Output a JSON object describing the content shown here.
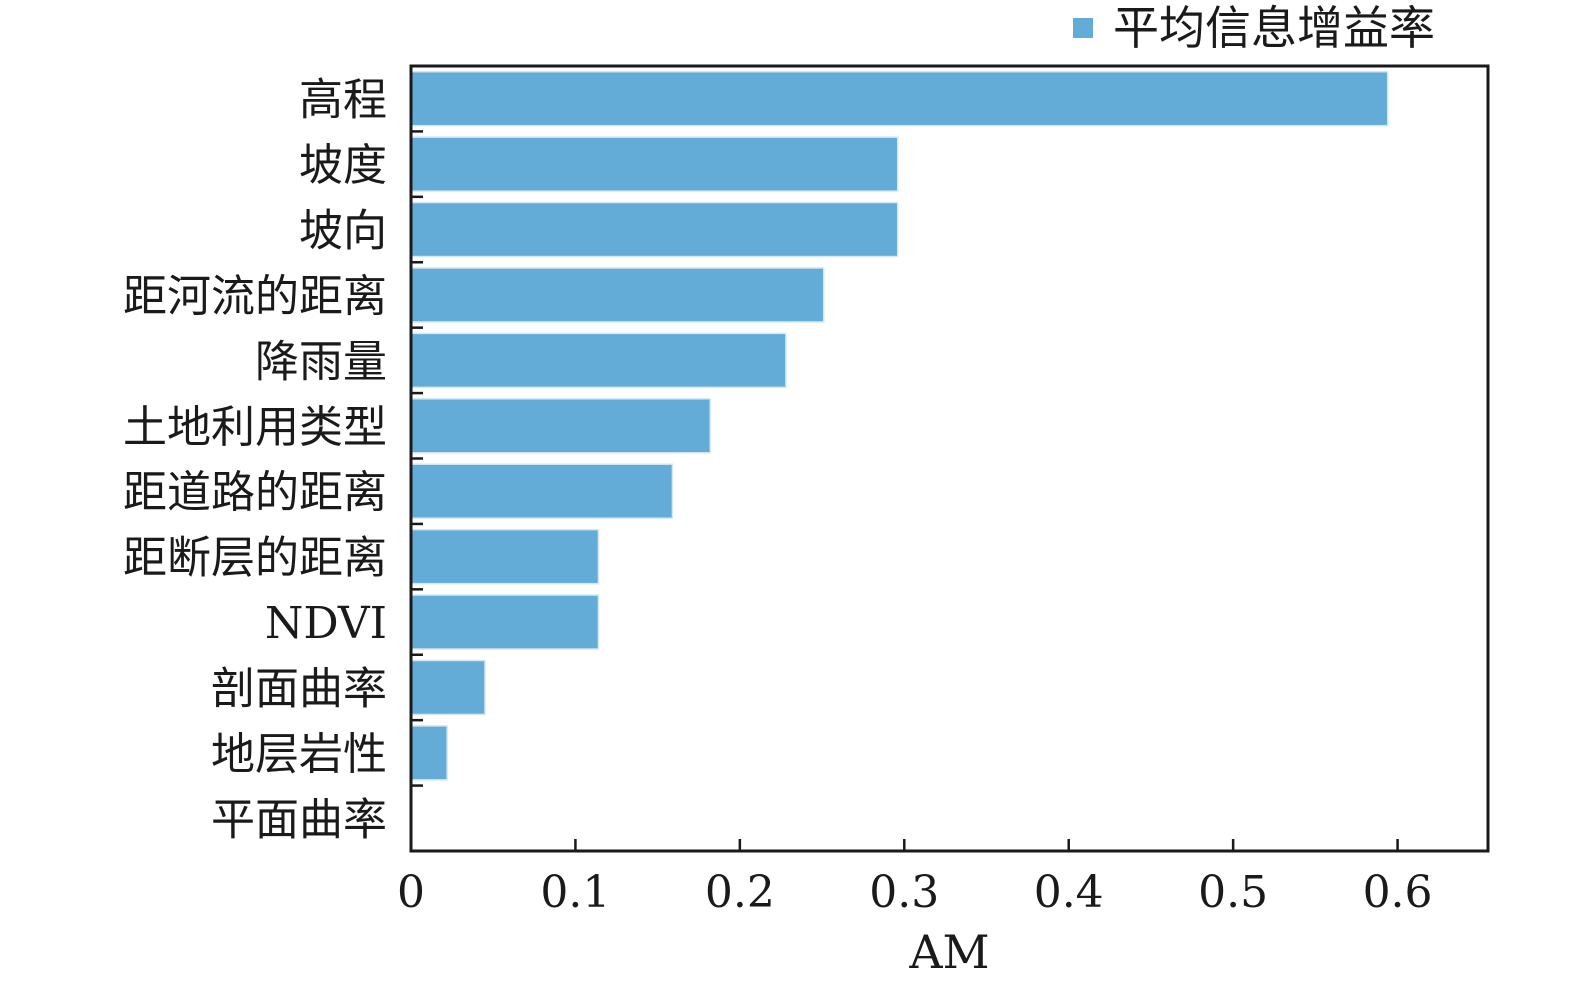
{
  "chart_data": {
    "type": "bar",
    "orientation": "horizontal",
    "categories": [
      "高程",
      "坡度",
      "坡向",
      "距河流的距离",
      "降雨量",
      "土地利用类型",
      "距道路的距离",
      "距断层的距离",
      "NDVI",
      "剖面曲率",
      "地层岩性",
      "平面曲率"
    ],
    "series": [
      {
        "name": "平均信息增益率",
        "values": [
          0.594,
          0.296,
          0.296,
          0.251,
          0.228,
          0.182,
          0.159,
          0.114,
          0.114,
          0.045,
          0.022,
          0.0
        ],
        "color": "#63acd8"
      }
    ],
    "xlabel": "AM",
    "ylabel": "",
    "xlim": [
      0,
      0.655
    ],
    "xticks": [
      0,
      0.1,
      0.2,
      0.3,
      0.4,
      0.5,
      0.6
    ],
    "xtick_labels": [
      "0",
      "0.1",
      "0.2",
      "0.3",
      "0.4",
      "0.5",
      "0.6"
    ],
    "grid": false,
    "legend_position": "top-right"
  }
}
